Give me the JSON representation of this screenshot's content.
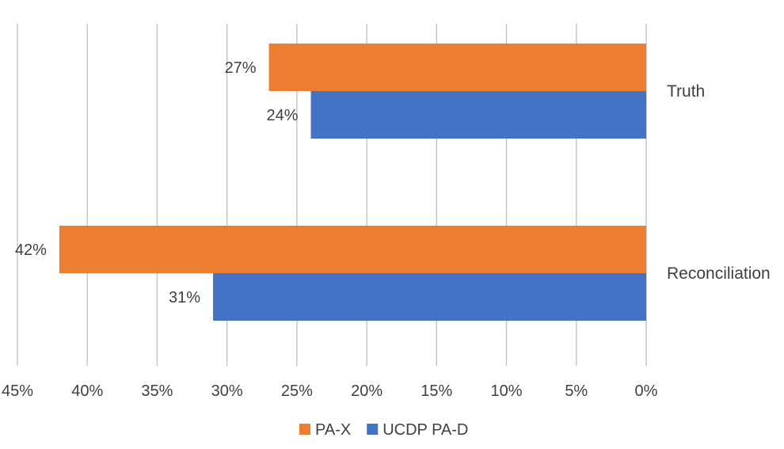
{
  "chart_data": {
    "type": "bar",
    "orientation": "horizontal",
    "x_axis_reversed": true,
    "categories": [
      "Truth",
      "Reconciliation"
    ],
    "series": [
      {
        "name": "PA-X",
        "values": [
          27,
          42
        ],
        "labels": [
          "27%",
          "42%"
        ],
        "color": "#ED7D31"
      },
      {
        "name": "UCDP PA-D",
        "values": [
          24,
          31
        ],
        "labels": [
          "24%",
          "31%"
        ],
        "color": "#4472C4"
      }
    ],
    "xlim": [
      0,
      45
    ],
    "ticks": [
      0,
      5,
      10,
      15,
      20,
      25,
      30,
      35,
      40,
      45
    ],
    "tick_labels": [
      "0%",
      "5%",
      "10%",
      "15%",
      "20%",
      "25%",
      "30%",
      "35%",
      "40%",
      "45%"
    ],
    "grid": true,
    "grid_color": "#BFBFBF",
    "legend_position": "bottom"
  }
}
